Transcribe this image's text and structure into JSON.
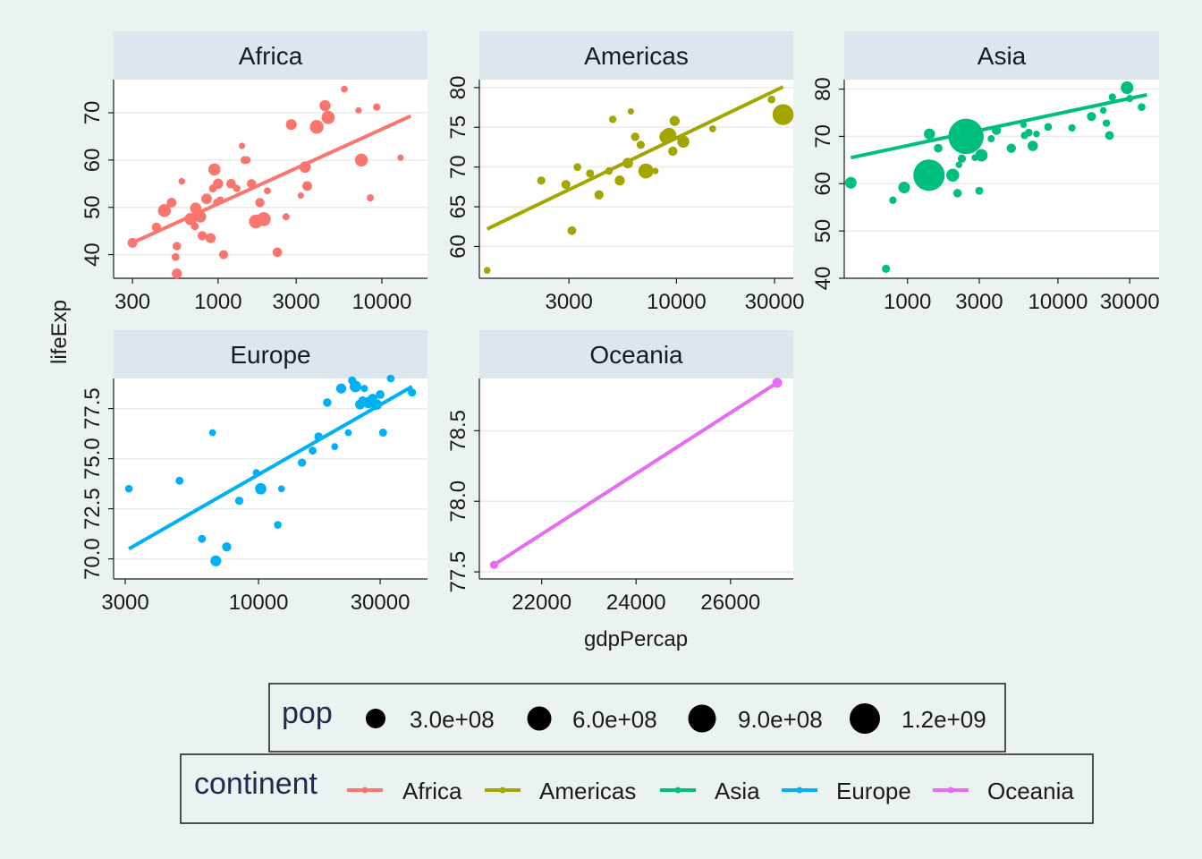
{
  "chart_data": {
    "type": "scatter",
    "facet_by": "continent",
    "xlabel": "gdpPercap",
    "ylabel": "lifeExp",
    "trend": "linear fit per panel",
    "background": "#EBF2F2",
    "strip_fill": "#DDE6EC",
    "legends": {
      "size": {
        "title": "pop",
        "labels": [
          "3.0e+08",
          "6.0e+08",
          "9.0e+08",
          "1.2e+09"
        ],
        "values": [
          300000000,
          600000000,
          900000000,
          1200000000
        ]
      },
      "color": {
        "title": "continent",
        "labels": [
          "Africa",
          "Americas",
          "Asia",
          "Europe",
          "Oceania"
        ]
      }
    },
    "panels": [
      {
        "name": "Africa",
        "color": "#F8766D",
        "xscale": "log",
        "xlim": [
          230,
          19000
        ],
        "ylim": [
          35,
          77
        ],
        "xticks": [
          300,
          1000,
          3000,
          10000
        ],
        "xtick_labels": [
          "300",
          "1000",
          "3000",
          "10000"
        ],
        "yticks": [
          40,
          50,
          60,
          70
        ],
        "ytick_labels": [
          "40",
          "50",
          "60",
          "70"
        ],
        "line": [
          [
            300,
            42.5
          ],
          [
            15000,
            69.3
          ]
        ],
        "points": [
          [
            300,
            42.5,
            17
          ],
          [
            420,
            45.8,
            15
          ],
          [
            470,
            49.3,
            29
          ],
          [
            520,
            51.0,
            17
          ],
          [
            550,
            39.5,
            10
          ],
          [
            560,
            36.0,
            18
          ],
          [
            560,
            41.8,
            12
          ],
          [
            600,
            55.5,
            5
          ],
          [
            680,
            47.5,
            27
          ],
          [
            720,
            46.0,
            10
          ],
          [
            730,
            49.8,
            23
          ],
          [
            780,
            48.0,
            24
          ],
          [
            800,
            44.0,
            15
          ],
          [
            850,
            51.8,
            20
          ],
          [
            900,
            43.5,
            18
          ],
          [
            930,
            54.0,
            10
          ],
          [
            950,
            58.0,
            26
          ],
          [
            980,
            51.0,
            8
          ],
          [
            1000,
            55.0,
            19
          ],
          [
            1030,
            51.5,
            9
          ],
          [
            1080,
            40.0,
            14
          ],
          [
            1200,
            55.0,
            16
          ],
          [
            1300,
            54.0,
            8
          ],
          [
            1400,
            63.0,
            4
          ],
          [
            1450,
            60.0,
            10
          ],
          [
            1500,
            60.0,
            8
          ],
          [
            1600,
            55.0,
            15
          ],
          [
            1700,
            47.0,
            32
          ],
          [
            1800,
            51.0,
            15
          ],
          [
            1900,
            47.5,
            33
          ],
          [
            2000,
            53.5,
            6
          ],
          [
            2300,
            40.5,
            16
          ],
          [
            2600,
            48.0,
            7
          ],
          [
            2800,
            67.5,
            21
          ],
          [
            3200,
            52.5,
            4
          ],
          [
            3400,
            58.5,
            23
          ],
          [
            3500,
            54.5,
            17
          ],
          [
            4000,
            67.0,
            32
          ],
          [
            4500,
            71.5,
            22
          ],
          [
            4700,
            69.0,
            30
          ],
          [
            5900,
            75.0,
            6
          ],
          [
            7200,
            70.5,
            4
          ],
          [
            7500,
            60.0,
            29
          ],
          [
            8500,
            52.0,
            7
          ],
          [
            9300,
            71.2,
            8
          ],
          [
            13000,
            60.5,
            4
          ]
        ]
      },
      {
        "name": "Americas",
        "color": "#A3A500",
        "xscale": "log",
        "xlim": [
          1100,
          37000
        ],
        "ylim": [
          56,
          81
        ],
        "xticks": [
          3000,
          10000,
          30000
        ],
        "xtick_labels": [
          "3000",
          "10000",
          "30000"
        ],
        "yticks": [
          60,
          65,
          70,
          75,
          80
        ],
        "ytick_labels": [
          "60",
          "65",
          "70",
          "75",
          "80"
        ],
        "line": [
          [
            1200,
            62.2
          ],
          [
            33000,
            80.1
          ]
        ],
        "points": [
          [
            1200,
            57.0,
            6
          ],
          [
            2200,
            68.3,
            11
          ],
          [
            2900,
            67.8,
            14
          ],
          [
            3100,
            62.0,
            13
          ],
          [
            3300,
            70.0,
            9
          ],
          [
            3800,
            69.2,
            10
          ],
          [
            4200,
            66.5,
            15
          ],
          [
            4700,
            69.5,
            8
          ],
          [
            4900,
            76.0,
            8
          ],
          [
            5300,
            68.3,
            18
          ],
          [
            5800,
            70.5,
            20
          ],
          [
            6000,
            77.0,
            4
          ],
          [
            6300,
            73.8,
            12
          ],
          [
            6700,
            72.8,
            11
          ],
          [
            7100,
            69.5,
            37
          ],
          [
            7900,
            69.5,
            4
          ],
          [
            8900,
            73.8,
            31
          ],
          [
            9200,
            74.0,
            36
          ],
          [
            9600,
            72.0,
            15
          ],
          [
            9800,
            75.8,
            18
          ],
          [
            10800,
            73.2,
            26
          ],
          [
            15000,
            74.8,
            6
          ],
          [
            29000,
            78.5,
            9
          ],
          [
            33000,
            76.6,
            60
          ]
        ]
      },
      {
        "name": "Asia",
        "color": "#00BF7D",
        "xscale": "log",
        "xlim": [
          380,
          47000
        ],
        "ylim": [
          40,
          82
        ],
        "xticks": [
          1000,
          3000,
          10000,
          30000
        ],
        "xtick_labels": [
          "1000",
          "3000",
          "10000",
          "30000"
        ],
        "yticks": [
          40,
          50,
          60,
          70,
          80
        ],
        "ytick_labels": [
          "40",
          "50",
          "60",
          "70",
          "80"
        ],
        "line": [
          [
            420,
            65.5
          ],
          [
            39000,
            78.8
          ]
        ],
        "points": [
          [
            420,
            60.2,
            24
          ],
          [
            720,
            42.0,
            11
          ],
          [
            800,
            56.5,
            8
          ],
          [
            950,
            59.2,
            24
          ],
          [
            1390,
            61.8,
            100
          ],
          [
            1400,
            70.5,
            22
          ],
          [
            1600,
            67.5,
            13
          ],
          [
            2000,
            61.8,
            29
          ],
          [
            2150,
            58.0,
            12
          ],
          [
            2200,
            64.0,
            5
          ],
          [
            2300,
            65.3,
            11
          ],
          [
            2450,
            70.0,
            115
          ],
          [
            2800,
            65.5,
            5
          ],
          [
            3000,
            58.5,
            10
          ],
          [
            3100,
            66.0,
            27
          ],
          [
            3600,
            69.5,
            7
          ],
          [
            3900,
            71.3,
            15
          ],
          [
            4900,
            67.5,
            15
          ],
          [
            5900,
            72.5,
            5
          ],
          [
            6000,
            70.2,
            8
          ],
          [
            6400,
            70.8,
            9
          ],
          [
            6800,
            68.0,
            19
          ],
          [
            7200,
            70.5,
            5
          ],
          [
            8600,
            72.0,
            9
          ],
          [
            12400,
            71.8,
            8
          ],
          [
            16700,
            74.2,
            14
          ],
          [
            20000,
            75.5,
            5
          ],
          [
            21000,
            72.8,
            8
          ],
          [
            22000,
            70.2,
            13
          ],
          [
            23000,
            78.3,
            8
          ],
          [
            28800,
            80.3,
            28
          ],
          [
            30000,
            78.0,
            7
          ],
          [
            36000,
            76.2,
            9
          ]
        ]
      },
      {
        "name": "Europe",
        "color": "#00B0F6",
        "xscale": "log",
        "xlim": [
          2700,
          46000
        ],
        "ylim": [
          69.0,
          79.0
        ],
        "xticks": [
          3000,
          10000,
          30000
        ],
        "xtick_labels": [
          "3000",
          "10000",
          "30000"
        ],
        "yticks": [
          70.0,
          72.5,
          75.0,
          77.5
        ],
        "ytick_labels": [
          "70.0",
          "72.5",
          "75.0",
          "77.5"
        ],
        "line": [
          [
            3100,
            70.5
          ],
          [
            40000,
            78.6
          ]
        ],
        "points": [
          [
            3100,
            73.5,
            9
          ],
          [
            4900,
            73.9,
            10
          ],
          [
            6000,
            71.0,
            10
          ],
          [
            6600,
            76.3,
            6
          ],
          [
            6800,
            69.9,
            21
          ],
          [
            7500,
            70.6,
            15
          ],
          [
            8400,
            72.9,
            11
          ],
          [
            9800,
            74.3,
            7
          ],
          [
            10200,
            73.5,
            23
          ],
          [
            11900,
            71.7,
            9
          ],
          [
            12300,
            73.5,
            6
          ],
          [
            14800,
            74.8,
            11
          ],
          [
            16300,
            75.4,
            10
          ],
          [
            17200,
            76.1,
            12
          ],
          [
            18600,
            77.8,
            12
          ],
          [
            19900,
            75.6,
            6
          ],
          [
            21100,
            78.5,
            18
          ],
          [
            22500,
            76.3,
            6
          ],
          [
            23300,
            78.9,
            11
          ],
          [
            24000,
            78.6,
            24
          ],
          [
            25000,
            77.7,
            17
          ],
          [
            25600,
            77.9,
            12
          ],
          [
            26000,
            78.5,
            7
          ],
          [
            27000,
            77.8,
            23
          ],
          [
            28000,
            78.0,
            16
          ],
          [
            29000,
            77.7,
            21
          ],
          [
            30000,
            78.2,
            13
          ],
          [
            30800,
            76.3,
            10
          ],
          [
            33000,
            79.0,
            9
          ],
          [
            40000,
            78.3,
            11
          ]
        ]
      },
      {
        "name": "Oceania",
        "color": "#E76BF3",
        "xscale": "linear",
        "xlim": [
          20680,
          27330
        ],
        "ylim": [
          77.45,
          78.87
        ],
        "xticks": [
          22000,
          24000,
          26000
        ],
        "xtick_labels": [
          "22000",
          "24000",
          "26000"
        ],
        "yticks": [
          77.5,
          78.0,
          78.5
        ],
        "ytick_labels": [
          "77.5",
          "78.0",
          "78.5"
        ],
        "line": [
          [
            20990,
            77.55
          ],
          [
            26990,
            78.84
          ]
        ],
        "points": [
          [
            20990,
            77.55,
            11
          ],
          [
            26990,
            78.84,
            17
          ]
        ]
      }
    ]
  }
}
